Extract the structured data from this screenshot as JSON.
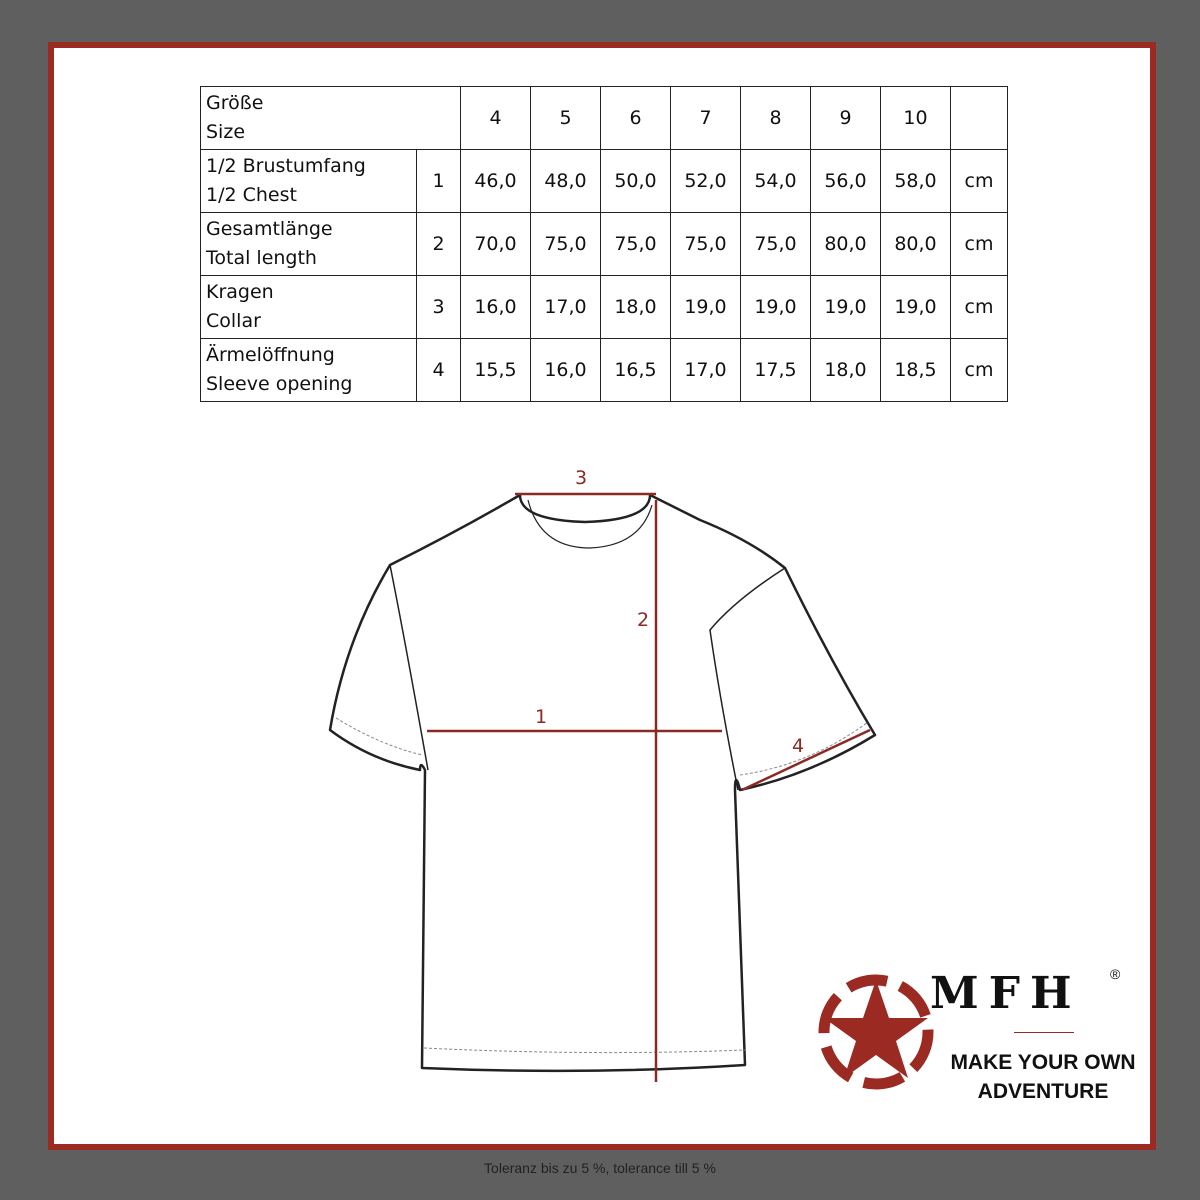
{
  "table": {
    "header": {
      "label_de": "Größe",
      "label_en": "Size",
      "sizes": [
        "4",
        "5",
        "6",
        "7",
        "8",
        "9",
        "10"
      ]
    },
    "rows": [
      {
        "label_de": "1/2 Brustumfang",
        "label_en": "1/2 Chest",
        "num": "1",
        "values": [
          "46,0",
          "48,0",
          "50,0",
          "52,0",
          "54,0",
          "56,0",
          "58,0"
        ],
        "unit": "cm"
      },
      {
        "label_de": "Gesamtlänge",
        "label_en": "Total length",
        "num": "2",
        "values": [
          "70,0",
          "75,0",
          "75,0",
          "75,0",
          "75,0",
          "80,0",
          "80,0"
        ],
        "unit": "cm"
      },
      {
        "label_de": "Kragen",
        "label_en": "Collar",
        "num": "3",
        "values": [
          "16,0",
          "17,0",
          "18,0",
          "19,0",
          "19,0",
          "19,0",
          "19,0"
        ],
        "unit": "cm"
      },
      {
        "label_de": "Ärmelöffnung",
        "label_en": "Sleeve opening",
        "num": "4",
        "values": [
          "15,5",
          "16,0",
          "16,5",
          "17,0",
          "17,5",
          "18,0",
          "18,5"
        ],
        "unit": "cm"
      }
    ]
  },
  "diagram": {
    "labels": [
      "1",
      "2",
      "3",
      "4"
    ],
    "measure_color": "#8b2a22"
  },
  "logo": {
    "brand": "MFH",
    "registered": "®",
    "slogan_line1": "MAKE YOUR OWN",
    "slogan_line2": "ADVENTURE",
    "color": "#9a2a22"
  },
  "footer": "Toleranz bis zu 5 %, tolerance till 5 %"
}
